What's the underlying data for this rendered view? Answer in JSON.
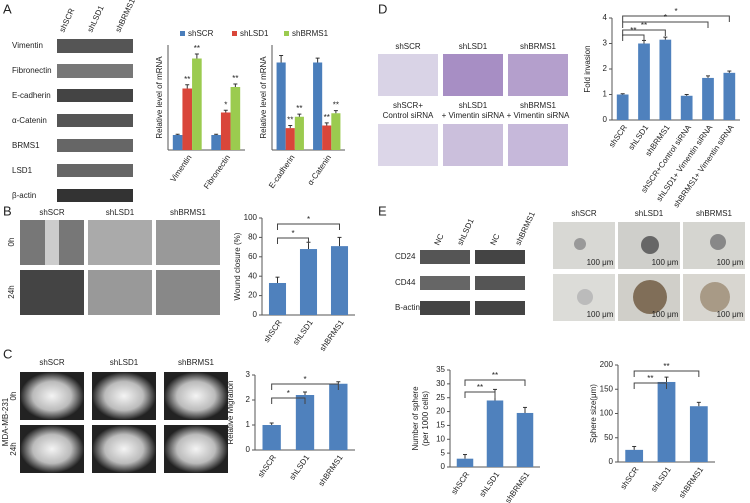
{
  "panels": [
    "A",
    "B",
    "C",
    "D",
    "E"
  ],
  "blot_A": {
    "columns": [
      "shSCR",
      "shLSD1",
      "shBRMS1"
    ],
    "rows": [
      "Vimentin",
      "Fibronectin",
      "E-cadherin",
      "α-Catenin",
      "BRMS1",
      "LSD1",
      "β-actin"
    ]
  },
  "wound_B": {
    "columns": [
      "shSCR",
      "shLSD1",
      "shBRMS1"
    ],
    "rows": [
      "0h",
      "24h"
    ]
  },
  "migration_C": {
    "columns": [
      "shSCR",
      "shLSD1",
      "shBRMS1"
    ],
    "rows": [
      "0h",
      "24h"
    ],
    "cell_line": "MDA-MB-231"
  },
  "invasion_D": {
    "row1": [
      "shSCR",
      "shLSD1",
      "shBRMS1"
    ],
    "row2": [
      [
        "shSCR+",
        "Control siRNA"
      ],
      [
        "shLSD1",
        "+ Vimentin siRNA"
      ],
      [
        "shBRMS1",
        "+ Vimentin siRNA"
      ]
    ]
  },
  "blot_E": {
    "columns": [
      "NC",
      "shLSD1",
      "NC",
      "shBRMS1"
    ],
    "rows": [
      "CD24",
      "CD44",
      "B-actin"
    ]
  },
  "sphere_E": {
    "columns": [
      "shSCR",
      "shLSD1",
      "shBRMS1"
    ],
    "scale_bar": "100 μm"
  },
  "chart_data": [
    {
      "type": "bar",
      "y_label": [
        "Relative level of mRNA"
      ],
      "categories": [
        "Vimentin",
        "Fibronectin"
      ],
      "ylim": [
        0,
        7
      ],
      "legend": "top",
      "series": [
        {
          "name": "shSCR",
          "color": "#4a7ebb",
          "values": [
            1,
            1
          ],
          "errors": [
            0.05,
            0.05
          ],
          "labels": [
            null,
            null
          ]
        },
        {
          "name": "shLSD1",
          "color": "#d9463a",
          "values": [
            4.1,
            2.5
          ],
          "errors": [
            0.25,
            0.15
          ],
          "labels": [
            "**",
            "*"
          ]
        },
        {
          "name": "shBRMS1",
          "color": "#9bcb4f",
          "values": [
            6.1,
            4.2
          ],
          "errors": [
            0.3,
            0.2
          ],
          "labels": [
            "**",
            "**"
          ]
        }
      ]
    },
    {
      "type": "bar",
      "y_label": [
        "Relative level of mRNA"
      ],
      "categories": [
        "E-cadherin",
        "α-Catenin"
      ],
      "ylim": [
        0,
        1.2
      ],
      "series": [
        {
          "name": "shSCR",
          "color": "#4a7ebb",
          "values": [
            1,
            1
          ],
          "errors": [
            0.08,
            0.05
          ],
          "labels": [
            null,
            null
          ]
        },
        {
          "name": "shLSD1",
          "color": "#d9463a",
          "values": [
            0.25,
            0.28
          ],
          "errors": [
            0.03,
            0.03
          ],
          "labels": [
            "**",
            "**"
          ]
        },
        {
          "name": "shBRMS1",
          "color": "#9bcb4f",
          "values": [
            0.38,
            0.42
          ],
          "errors": [
            0.03,
            0.03
          ],
          "labels": [
            "**",
            "**"
          ]
        }
      ]
    },
    {
      "type": "bar",
      "y_label": [
        "Wound closure (%)"
      ],
      "categories": [
        "shSCR",
        "shLSD1",
        "shBRMS1"
      ],
      "values": [
        33,
        68,
        71
      ],
      "errors": [
        6,
        7,
        9
      ],
      "color": "#4f81bd",
      "ylim": [
        0,
        100
      ],
      "yticks": [
        0,
        20,
        40,
        60,
        80,
        100
      ],
      "annotations": [
        "*",
        "*"
      ]
    },
    {
      "type": "bar",
      "y_label": [
        "Relative Migration"
      ],
      "categories": [
        "shSCR",
        "shLSD1",
        "shBRMS1"
      ],
      "values": [
        1.0,
        2.2,
        2.65
      ],
      "errors": [
        0.08,
        0.12,
        0.08
      ],
      "color": "#4f81bd",
      "ylim": [
        0,
        3
      ],
      "yticks": [
        0,
        1,
        2,
        3
      ],
      "annotations": [
        "*",
        "*"
      ]
    },
    {
      "type": "bar",
      "y_label": [
        "Fold invasion"
      ],
      "categories": [
        "shSCR",
        "shLSD1",
        "shBRMS1",
        "shSCR+Control siRNA",
        "shLSD1+ Vimentin siRNA",
        "shBRMS1+ Vimentin siRNA"
      ],
      "values": [
        1,
        3.0,
        3.15,
        0.95,
        1.65,
        1.85
      ],
      "errors": [
        0.03,
        0.12,
        0.1,
        0.05,
        0.08,
        0.07
      ],
      "color": "#4f81bd",
      "ylim": [
        0,
        4
      ],
      "yticks": [
        0,
        1,
        2,
        3,
        4
      ],
      "annotations": [
        "**",
        "**",
        "*",
        "*"
      ]
    },
    {
      "type": "bar",
      "y_label": [
        "Number of sphere",
        "(per 1000 cells)"
      ],
      "categories": [
        "shSCR",
        "shLSD1",
        "shBRMS1"
      ],
      "values": [
        3,
        24,
        19.5
      ],
      "errors": [
        1.5,
        4,
        2
      ],
      "color": "#4f81bd",
      "ylim": [
        0,
        35
      ],
      "yticks": [
        0,
        5,
        10,
        15,
        20,
        25,
        30,
        35
      ],
      "annotations": [
        "**",
        "**"
      ]
    },
    {
      "type": "bar",
      "y_label": [
        "Sphere size(μm)"
      ],
      "categories": [
        "shSCR",
        "shLSD1",
        "shBRMS1"
      ],
      "values": [
        25,
        165,
        115
      ],
      "errors": [
        7,
        10,
        8
      ],
      "color": "#4f81bd",
      "ylim": [
        0,
        200
      ],
      "yticks": [
        0,
        50,
        100,
        150,
        200
      ],
      "annotations": [
        "**",
        "**"
      ]
    }
  ]
}
